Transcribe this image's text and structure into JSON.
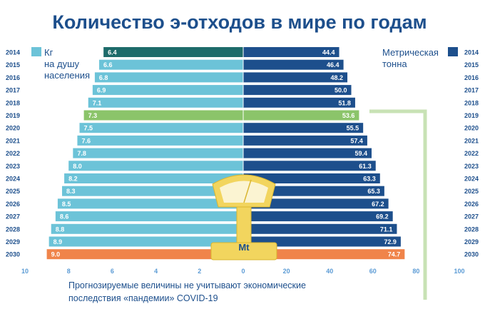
{
  "title": "Количество э-отходов в мире по годам",
  "legend": {
    "left": [
      "Кг",
      "на душу",
      "населения"
    ],
    "right": [
      "Метрическая",
      "тонна"
    ]
  },
  "note": [
    "Прогнозируемые величины не учитывают экономические",
    "последствия «пандемии» COVID-19"
  ],
  "scale_label": "Mt",
  "colors": {
    "title": "#1d4f8c",
    "left_bar": "#6cc3d8",
    "right_bar": "#1d4f8c",
    "first_left": "#1d6b6a",
    "highlight": "#8bc46a",
    "forecast_end": "#f0844a",
    "year_text": "#1d4f8c",
    "axis_text": "#5b9bd5",
    "guide_line": "#c8e2b5",
    "scale": "#f2d55e"
  },
  "chart_data": {
    "type": "bar",
    "title": "Количество э-отходов в мире по годам",
    "categories": [
      "2014",
      "2015",
      "2016",
      "2017",
      "2018",
      "2019",
      "2020",
      "2021",
      "2022",
      "2023",
      "2024",
      "2025",
      "2026",
      "2027",
      "2028",
      "2029",
      "2030"
    ],
    "series": [
      {
        "name": "Кг на душу населения",
        "values": [
          6.4,
          6.6,
          6.8,
          6.9,
          7.1,
          7.3,
          7.5,
          7.6,
          7.8,
          8.0,
          8.2,
          8.3,
          8.5,
          8.6,
          8.8,
          8.9,
          9.0
        ]
      },
      {
        "name": "Метрическая тонна",
        "values": [
          44.4,
          46.4,
          48.2,
          50.0,
          51.8,
          53.6,
          55.5,
          57.4,
          59.4,
          61.3,
          63.3,
          65.3,
          67.2,
          69.2,
          71.1,
          72.9,
          74.7
        ]
      }
    ],
    "left_axis": {
      "ticks": [
        "10",
        "8",
        "6",
        "4",
        "2",
        "0"
      ],
      "range": [
        0,
        10
      ],
      "direction": "reversed"
    },
    "right_axis": {
      "ticks": [
        "0",
        "20",
        "40",
        "60",
        "80",
        "100"
      ],
      "range": [
        0,
        100
      ]
    },
    "highlight_category": "2019",
    "forecast_end_category": "2030",
    "grid": false,
    "legend_position": "top"
  }
}
